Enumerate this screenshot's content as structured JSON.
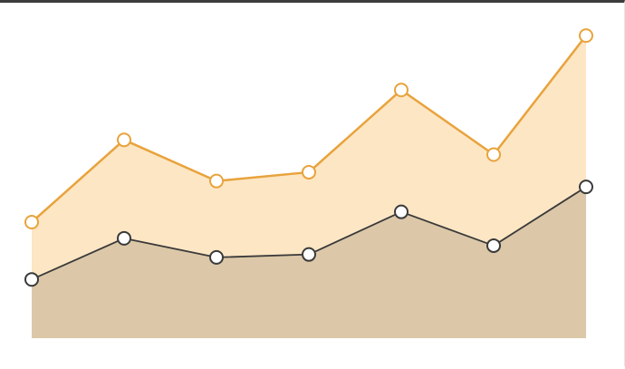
{
  "chart_data": {
    "type": "area",
    "stacked": false,
    "categories": [
      "",
      "",
      "",
      "",
      "",
      "",
      ""
    ],
    "title": "",
    "xlabel": "",
    "ylabel": "",
    "ylim": [
      0,
      100
    ],
    "grid": false,
    "legend": "none",
    "series": [
      {
        "values": [
          39.5,
          67.5,
          53.5,
          56.5,
          84.5,
          62.5,
          103.0
        ],
        "line_color": "#e8a33c",
        "fill_color": "#fde6c4"
      },
      {
        "values": [
          20.0,
          34.0,
          27.5,
          28.5,
          43.0,
          31.5,
          51.5
        ],
        "line_color": "#3a3a3a",
        "fill_color": "#dcc8a8"
      }
    ]
  }
}
